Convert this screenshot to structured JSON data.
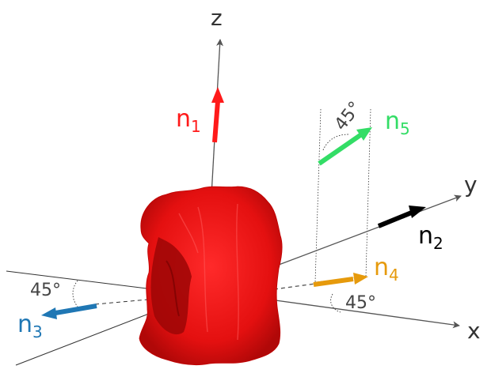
{
  "axes": {
    "x": "x",
    "y": "y",
    "z": "z"
  },
  "normals": {
    "n1": {
      "base": "n",
      "sub": "1",
      "color": "#ff1a1a"
    },
    "n2": {
      "base": "n",
      "sub": "2",
      "color": "#000000"
    },
    "n3": {
      "base": "n",
      "sub": "3",
      "color": "#1f77b4"
    },
    "n4": {
      "base": "n",
      "sub": "4",
      "color": "#e69a0c"
    },
    "n5": {
      "base": "n",
      "sub": "5",
      "color": "#33dd66"
    }
  },
  "angles": {
    "a_n5": "45°",
    "a_n3": "45°",
    "a_n4": "45°"
  },
  "colors": {
    "object": "#e81010",
    "axis": "#555555"
  }
}
